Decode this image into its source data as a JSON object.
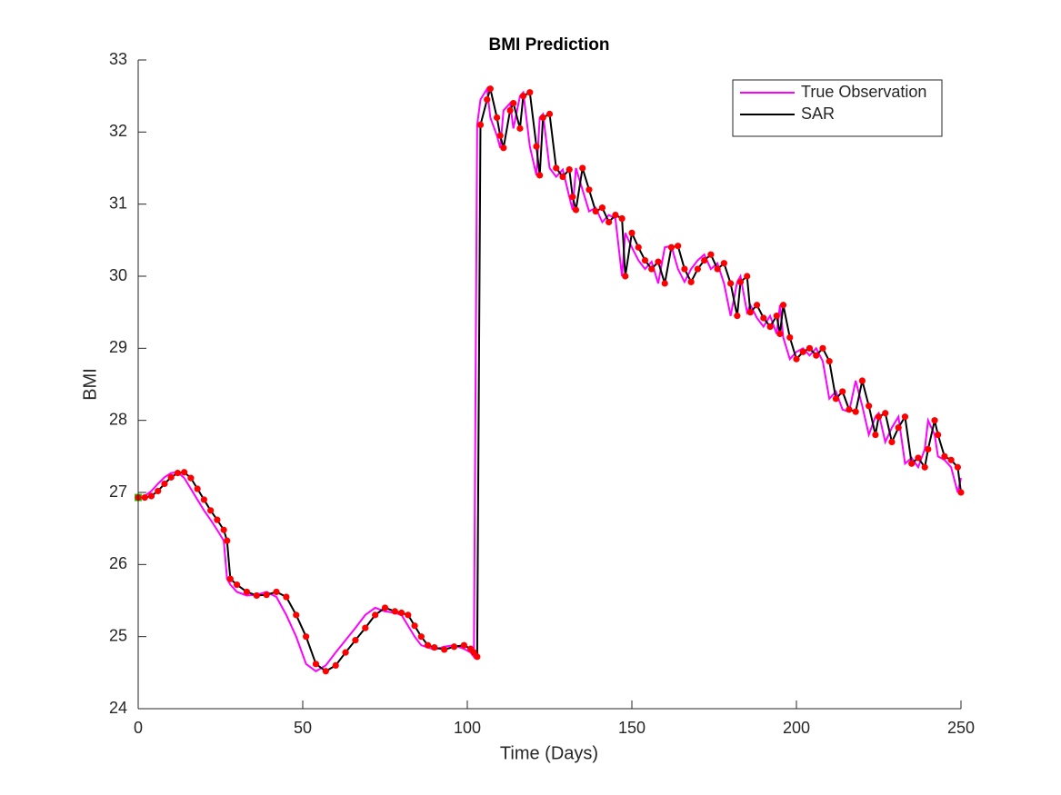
{
  "chart_data": {
    "type": "line",
    "title": "BMI Prediction",
    "x_label": "Time (Days)",
    "y_label": "BMI",
    "x": [
      0,
      2,
      4,
      6,
      8,
      10,
      12,
      14,
      16,
      18,
      20,
      22,
      24,
      26,
      27,
      28,
      30,
      33,
      36,
      39,
      42,
      45,
      48,
      51,
      54,
      57,
      60,
      63,
      66,
      69,
      72,
      75,
      78,
      80,
      82,
      84,
      86,
      88,
      90,
      93,
      96,
      99,
      101,
      102,
      103,
      104,
      106,
      107,
      109,
      110,
      111,
      113,
      114,
      116,
      117,
      119,
      121,
      122,
      123,
      125,
      127,
      129,
      131,
      132,
      133,
      135,
      137,
      139,
      141,
      143,
      145,
      147,
      148,
      150,
      152,
      154,
      156,
      158,
      160,
      162,
      164,
      166,
      168,
      170,
      172,
      174,
      176,
      178,
      180,
      182,
      183,
      185,
      186,
      188,
      190,
      192,
      194,
      195,
      196,
      198,
      200,
      202,
      204,
      206,
      208,
      210,
      212,
      214,
      216,
      218,
      220,
      222,
      224,
      225,
      227,
      229,
      231,
      233,
      235,
      237,
      239,
      240,
      242,
      243,
      245,
      247,
      249,
      250
    ],
    "series": [
      {
        "name": "True Observation",
        "color": "#ff00ff",
        "start_marker_color": "#00dd00",
        "values": [
          26.93,
          26.95,
          27.02,
          27.12,
          27.21,
          27.27,
          27.28,
          27.2,
          27.05,
          26.9,
          26.75,
          26.62,
          26.48,
          26.33,
          25.8,
          25.72,
          25.62,
          25.57,
          25.58,
          25.62,
          25.55,
          25.3,
          25.0,
          24.62,
          24.52,
          24.6,
          24.78,
          24.95,
          25.12,
          25.3,
          25.4,
          25.35,
          25.33,
          25.3,
          25.15,
          25.0,
          24.88,
          24.85,
          24.82,
          24.86,
          24.88,
          24.83,
          24.78,
          24.72,
          32.1,
          32.45,
          32.6,
          32.2,
          31.95,
          31.78,
          32.3,
          32.4,
          32.05,
          32.5,
          32.55,
          31.8,
          31.4,
          32.2,
          32.25,
          31.5,
          31.38,
          31.48,
          31.1,
          30.92,
          31.5,
          31.2,
          30.9,
          30.95,
          30.75,
          30.85,
          30.8,
          30.0,
          30.6,
          30.4,
          30.22,
          30.1,
          30.2,
          29.9,
          30.4,
          30.42,
          30.1,
          29.92,
          30.1,
          30.22,
          30.3,
          30.1,
          30.18,
          29.9,
          29.45,
          29.92,
          30.0,
          29.5,
          29.6,
          29.42,
          29.3,
          29.45,
          29.2,
          29.6,
          29.15,
          28.85,
          28.95,
          29.0,
          28.9,
          29.0,
          28.82,
          28.3,
          28.4,
          28.15,
          28.12,
          28.55,
          28.2,
          27.8,
          28.05,
          28.1,
          27.7,
          27.9,
          28.05,
          27.4,
          27.48,
          27.35,
          27.6,
          28.0,
          27.8,
          27.5,
          27.45,
          27.35,
          27.0,
          27.2
        ]
      },
      {
        "name": "SAR",
        "color": "#000000",
        "marker_color": "#ff0000",
        "values": [
          26.93,
          26.93,
          26.95,
          27.02,
          27.12,
          27.21,
          27.27,
          27.28,
          27.2,
          27.05,
          26.9,
          26.75,
          26.62,
          26.48,
          26.33,
          25.8,
          25.72,
          25.62,
          25.57,
          25.58,
          25.62,
          25.55,
          25.3,
          25.0,
          24.62,
          24.52,
          24.6,
          24.78,
          24.95,
          25.12,
          25.3,
          25.4,
          25.35,
          25.33,
          25.3,
          25.15,
          25.0,
          24.88,
          24.85,
          24.82,
          24.86,
          24.88,
          24.83,
          24.78,
          24.72,
          32.1,
          32.45,
          32.6,
          32.2,
          31.95,
          31.78,
          32.3,
          32.4,
          32.05,
          32.5,
          32.55,
          31.8,
          31.4,
          32.2,
          32.25,
          31.5,
          31.38,
          31.48,
          31.1,
          30.92,
          31.5,
          31.2,
          30.9,
          30.95,
          30.75,
          30.85,
          30.8,
          30.0,
          30.6,
          30.4,
          30.22,
          30.1,
          30.2,
          29.9,
          30.4,
          30.42,
          30.1,
          29.92,
          30.1,
          30.22,
          30.3,
          30.1,
          30.18,
          29.9,
          29.45,
          29.92,
          30.0,
          29.5,
          29.6,
          29.42,
          29.3,
          29.45,
          29.2,
          29.6,
          29.15,
          28.85,
          28.95,
          29.0,
          28.9,
          29.0,
          28.82,
          28.3,
          28.4,
          28.15,
          28.12,
          28.55,
          28.2,
          27.8,
          28.05,
          28.1,
          27.7,
          27.9,
          28.05,
          27.4,
          27.48,
          27.35,
          27.6,
          28.0,
          27.8,
          27.5,
          27.45,
          27.35,
          27.0
        ]
      }
    ],
    "xlim": [
      0,
      250
    ],
    "xticks": [
      0,
      50,
      100,
      150,
      200,
      250
    ],
    "ylim": [
      24,
      33
    ],
    "yticks": [
      24,
      25,
      26,
      27,
      28,
      29,
      30,
      31,
      32,
      33
    ],
    "legend": "upper right"
  }
}
